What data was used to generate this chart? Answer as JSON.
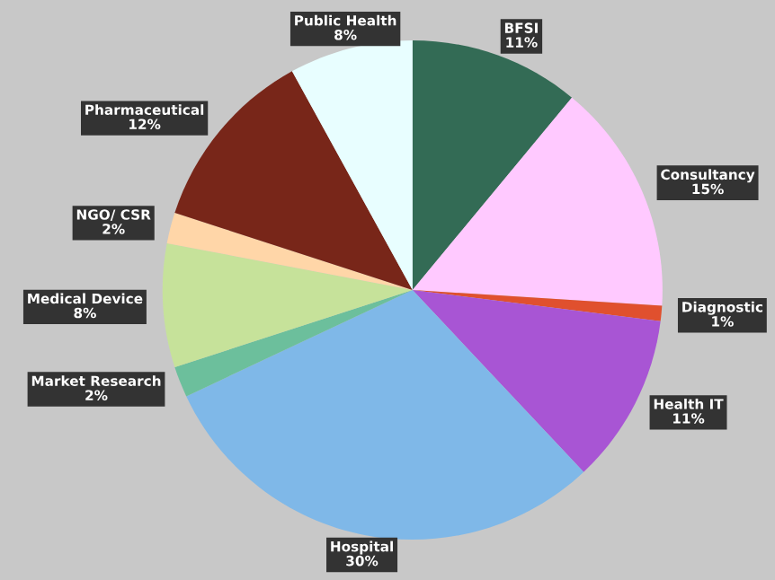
{
  "chart_data": {
    "type": "pie",
    "categories": [
      "BFSI",
      "Consultancy",
      "Diagnostic",
      "Health IT",
      "Hospital",
      "Market Research",
      "Medical Device",
      "NGO/ CSR",
      "Pharmaceutical",
      "Public Health"
    ],
    "values": [
      11,
      15,
      1,
      11,
      30,
      2,
      8,
      2,
      12,
      8
    ],
    "value_labels": [
      "11%",
      "15%",
      "1%",
      "11%",
      "30%",
      "2%",
      "8%",
      "2%",
      "12%",
      "8%"
    ],
    "colors": [
      "#336b55",
      "#ffc9ff",
      "#e0502e",
      "#a855d4",
      "#7fb8e8",
      "#6cbf9c",
      "#c6e29a",
      "#ffd6a8",
      "#782619",
      "#e8feff"
    ]
  }
}
